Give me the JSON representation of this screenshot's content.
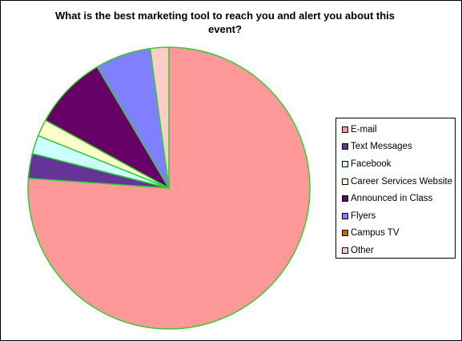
{
  "chart_data": {
    "type": "pie",
    "title": "What is the best marketing tool to reach you and alert you about this event?",
    "legend_position": "right",
    "slice_border_color": "#33cc33",
    "categories": [
      "E-mail",
      "Text Messages",
      "Facebook",
      "Career Services Website",
      "Announced in Class",
      "Flyers",
      "Campus TV",
      "Other"
    ],
    "values": [
      75.2,
      2.8,
      2.1,
      1.9,
      8.4,
      6.3,
      0.0,
      2.1
    ],
    "unit": "%",
    "colors": [
      "#ff9999",
      "#663399",
      "#ccffff",
      "#ffffcc",
      "#660066",
      "#8080ff",
      "#cc6600",
      "#ffcccc"
    ]
  }
}
